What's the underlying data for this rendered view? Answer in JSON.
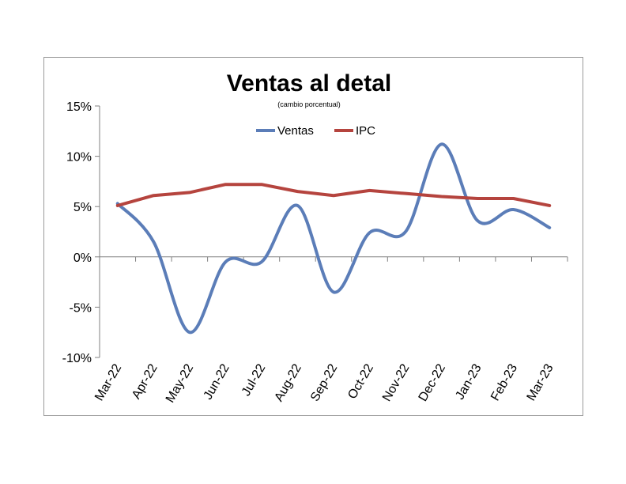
{
  "chart_data": {
    "type": "line",
    "title": "Ventas al detal",
    "subtitle": "(cambio porcentual)",
    "xlabel": "",
    "ylabel": "",
    "categories": [
      "Mar-22",
      "Apr-22",
      "May-22",
      "Jun-22",
      "Jul-22",
      "Aug-22",
      "Sep-22",
      "Oct-22",
      "Nov-22",
      "Dec-22",
      "Jan-23",
      "Feb-23",
      "Mar-23"
    ],
    "y_ticks": [
      15,
      10,
      5,
      0,
      -5,
      -10
    ],
    "y_tick_labels": [
      "15%",
      "10%",
      "5%",
      "0%",
      "-5%",
      "-10%"
    ],
    "ylim": [
      -10,
      15
    ],
    "grid": false,
    "legend_position": "top-center",
    "series": [
      {
        "name": "Ventas",
        "color": "#5B7DB8",
        "values": [
          5.3,
          1.5,
          -7.5,
          -0.5,
          -0.5,
          5.1,
          -3.5,
          2.4,
          2.5,
          11.2,
          3.6,
          4.7,
          2.9
        ]
      },
      {
        "name": "IPC",
        "color": "#B5443E",
        "values": [
          5.1,
          6.1,
          6.4,
          7.2,
          7.2,
          6.5,
          6.1,
          6.6,
          6.3,
          6.0,
          5.8,
          5.8,
          5.1
        ]
      }
    ]
  }
}
